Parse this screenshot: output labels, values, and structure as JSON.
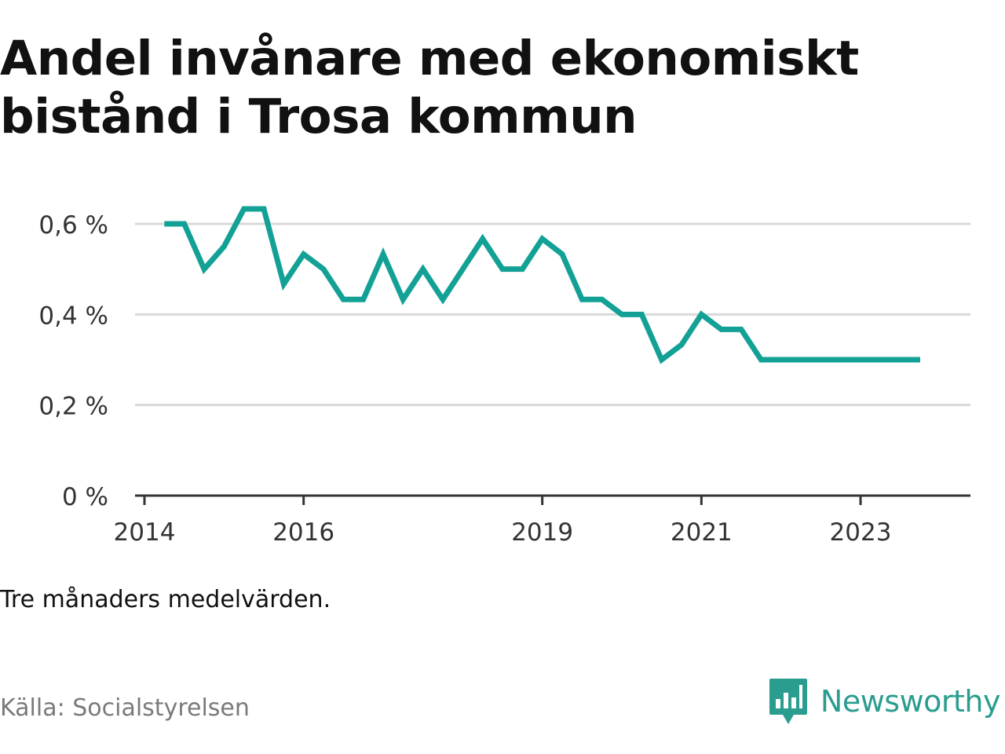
{
  "title": "Andel invånare med ekonomiskt bistånd i Trosa kommun",
  "note": "Tre månaders medelvärden.",
  "source": "Källa: Socialstyrelsen",
  "logo": {
    "name": "Newsworthy",
    "icon": "bar-chart-speech-bubble-icon"
  },
  "colors": {
    "line": "#13a196",
    "grid": "#d9d9d9",
    "axis": "#333333",
    "logo": "#2a9d8f"
  },
  "chart_data": {
    "type": "line",
    "title": "Andel invånare med ekonomiskt bistånd i Trosa kommun",
    "xlabel": "",
    "ylabel": "",
    "xlim": [
      2014.0,
      2024.5
    ],
    "ylim": [
      0,
      0.6
    ],
    "grid": true,
    "legend": "none",
    "y_ticks": [
      {
        "value": 0,
        "label": "0 %"
      },
      {
        "value": 0.2,
        "label": "0,2 %"
      },
      {
        "value": 0.4,
        "label": "0,4 %"
      },
      {
        "value": 0.6,
        "label": "0,6 %"
      }
    ],
    "x_ticks": [
      {
        "value": 2014,
        "label": "2014"
      },
      {
        "value": 2016,
        "label": "2016"
      },
      {
        "value": 2019,
        "label": "2019"
      },
      {
        "value": 2021,
        "label": "2021"
      },
      {
        "value": 2023,
        "label": "2023"
      }
    ],
    "series": [
      {
        "x": [
          2014.25,
          2014.5,
          2014.75,
          2015.0,
          2015.25,
          2015.5,
          2015.75,
          2016.0,
          2016.25,
          2016.5,
          2016.75,
          2017.0,
          2017.25,
          2017.5,
          2017.75,
          2018.0,
          2018.25,
          2018.5,
          2018.75,
          2019.0,
          2019.25,
          2019.5,
          2019.75,
          2020.0,
          2020.25,
          2020.5,
          2020.75,
          2021.0,
          2021.25,
          2021.5,
          2021.75,
          2022.0,
          2022.25,
          2022.5,
          2022.75,
          2023.0,
          2023.25,
          2023.5,
          2023.75
        ],
        "values": [
          0.6,
          0.6,
          0.5,
          0.55,
          0.633,
          0.633,
          0.467,
          0.533,
          0.5,
          0.433,
          0.433,
          0.533,
          0.433,
          0.5,
          0.433,
          0.5,
          0.567,
          0.5,
          0.5,
          0.567,
          0.533,
          0.433,
          0.433,
          0.4,
          0.4,
          0.3,
          0.333,
          0.4,
          0.367,
          0.367,
          0.3,
          0.3,
          0.3,
          0.3,
          0.3,
          0.3,
          0.3,
          0.3,
          0.3
        ]
      }
    ]
  }
}
